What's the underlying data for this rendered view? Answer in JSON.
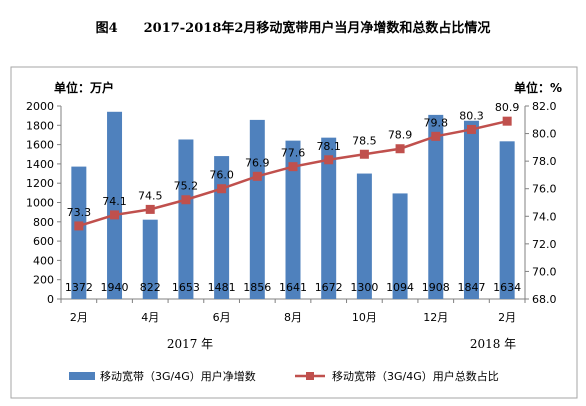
{
  "chart_data": {
    "title": "图4　　2017-2018年2月移动宽带用户当月净增数和总数占比情况",
    "left_unit": "单位：万户",
    "right_unit": "单位：%",
    "type": "bar",
    "categories": [
      "2月",
      "",
      "4月",
      "",
      "6月",
      "",
      "8月",
      "",
      "10月",
      "",
      "12月",
      "",
      "2月"
    ],
    "year_labels": [
      "2017 年",
      "2018 年"
    ],
    "series": [
      {
        "name": "移动宽带（3G/4G）用户净增数",
        "type": "bar",
        "axis": "left",
        "color": "#4F81BD",
        "values": [
          1372,
          1940,
          822,
          1653,
          1481,
          1856,
          1641,
          1672,
          1300,
          1094,
          1908,
          1847,
          1634
        ]
      },
      {
        "name": "移动宽带（3G/4G）用户总数占比",
        "type": "line",
        "axis": "right",
        "color": "#C0504D",
        "values": [
          73.3,
          74.1,
          74.5,
          75.2,
          76.0,
          76.9,
          77.6,
          78.1,
          78.5,
          78.9,
          79.8,
          80.3,
          80.9
        ]
      }
    ],
    "left_axis": {
      "min": 0,
      "max": 2000,
      "step": 200
    },
    "right_axis": {
      "min": 68.0,
      "max": 82.0,
      "step": 2.0
    },
    "grid": false,
    "legend_position": "bottom"
  }
}
